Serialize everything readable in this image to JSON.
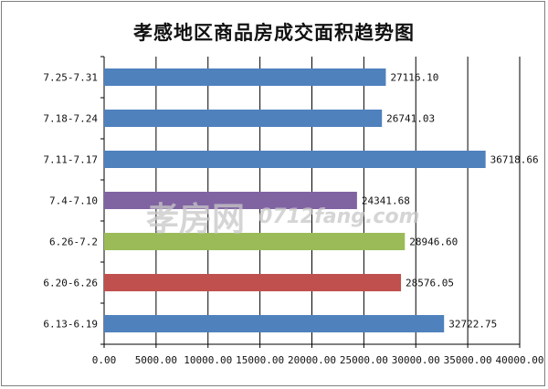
{
  "chart_data": {
    "type": "bar",
    "orientation": "horizontal",
    "title": "孝感地区商品房成交面积趋势图",
    "categories": [
      "7.25-7.31",
      "7.18-7.24",
      "7.11-7.17",
      "7.4-7.10",
      "6.26-7.2",
      "6.20-6.26",
      "6.13-6.19"
    ],
    "values": [
      27116.1,
      26741.03,
      36718.66,
      24341.68,
      28946.6,
      28576.05,
      32722.75
    ],
    "value_labels": [
      "27116.10",
      "26741.03",
      "36718.66",
      "24341.68",
      "28946.60",
      "28576.05",
      "32722.75"
    ],
    "bar_colors": [
      "#4f81bd",
      "#4f81bd",
      "#4f81bd",
      "#8064a2",
      "#9bbb59",
      "#c0504d",
      "#4f81bd"
    ],
    "xlim": [
      0,
      40000
    ],
    "x_ticks": [
      "0.00",
      "5000.00",
      "10000.00",
      "15000.00",
      "20000.00",
      "25000.00",
      "30000.00",
      "35000.00",
      "40000.00"
    ],
    "xlabel": "",
    "ylabel": "",
    "grid": "vertical",
    "legend": "none"
  },
  "watermark": {
    "cn": "孝房网",
    "en": "0712fang.com"
  }
}
